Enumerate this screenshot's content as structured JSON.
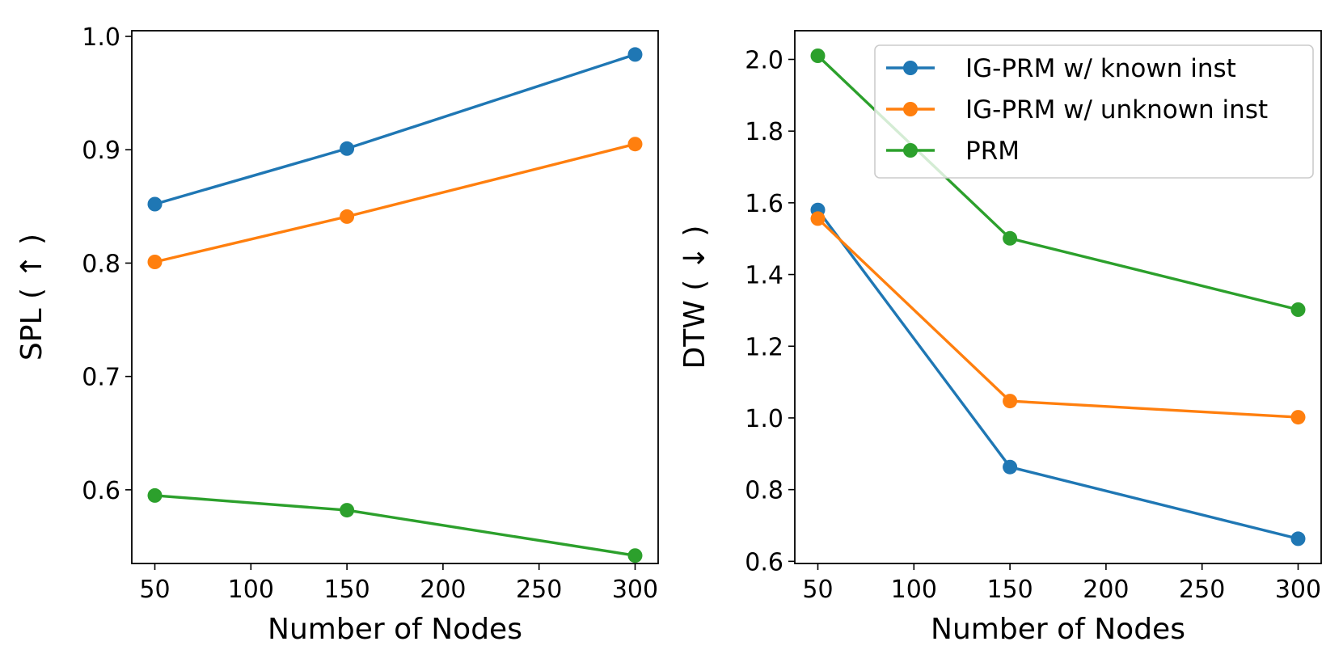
{
  "chart_data": [
    {
      "type": "line",
      "x": [
        50,
        150,
        300
      ],
      "xlabel": "Number of Nodes",
      "ylabel": "SPL ( ↑ )",
      "xlim": [
        38,
        312
      ],
      "ylim": [
        0.535,
        1.005
      ],
      "xticks": [
        50,
        100,
        150,
        200,
        250,
        300
      ],
      "xtick_labels": [
        "50",
        "100",
        "150",
        "200",
        "250",
        "300"
      ],
      "yticks": [
        0.6,
        0.7,
        0.8,
        0.9,
        1.0
      ],
      "ytick_labels": [
        "0.6",
        "0.7",
        "0.8",
        "0.9",
        "1.0"
      ],
      "legend": false,
      "series": [
        {
          "name": "IG-PRM w/ known inst",
          "color": "#1f77b4",
          "values": [
            0.852,
            0.901,
            0.984
          ]
        },
        {
          "name": "IG-PRM w/ unknown inst",
          "color": "#ff7f0e",
          "values": [
            0.801,
            0.841,
            0.905
          ]
        },
        {
          "name": "PRM",
          "color": "#2ca02c",
          "values": [
            0.595,
            0.582,
            0.542
          ]
        }
      ]
    },
    {
      "type": "line",
      "x": [
        50,
        150,
        300
      ],
      "xlabel": "Number of Nodes",
      "ylabel": "DTW ( ↓ )",
      "xlim": [
        38,
        312
      ],
      "ylim": [
        0.594,
        2.08
      ],
      "xticks": [
        50,
        100,
        150,
        200,
        250,
        300
      ],
      "xtick_labels": [
        "50",
        "100",
        "150",
        "200",
        "250",
        "300"
      ],
      "yticks": [
        0.6,
        0.8,
        1.0,
        1.2,
        1.4,
        1.6,
        1.8,
        2.0
      ],
      "ytick_labels": [
        "0.6",
        "0.8",
        "1.0",
        "1.2",
        "1.4",
        "1.6",
        "1.8",
        "2.0"
      ],
      "legend": true,
      "legend_position": "top-right",
      "series": [
        {
          "name": "IG-PRM w/ known inst",
          "color": "#1f77b4",
          "values": [
            1.58,
            0.863,
            0.663
          ]
        },
        {
          "name": "IG-PRM w/ unknown inst",
          "color": "#ff7f0e",
          "values": [
            1.556,
            1.047,
            1.002
          ]
        },
        {
          "name": "PRM",
          "color": "#2ca02c",
          "values": [
            2.01,
            1.501,
            1.302
          ]
        }
      ]
    }
  ]
}
